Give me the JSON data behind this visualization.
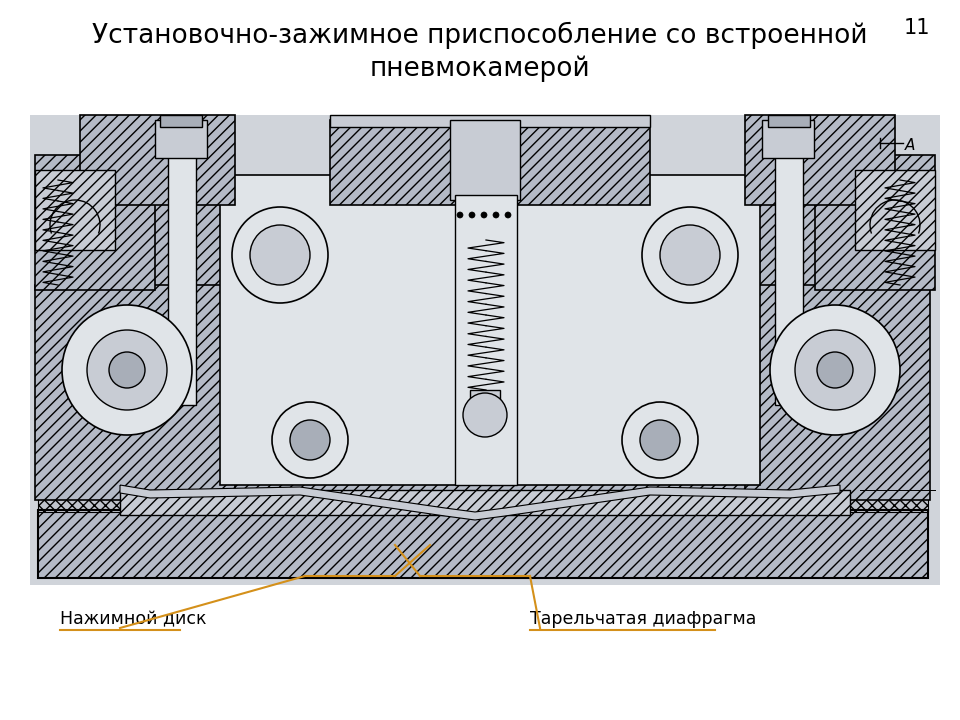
{
  "title_line1": "Установочно-зажимное приспособление со встроенной",
  "title_line2": "пневмокамерой",
  "page_number": "11",
  "title_fontsize": 19,
  "page_fontsize": 15,
  "bg_color": "#ffffff",
  "label1_text": "Нажимной диск",
  "label2_text": "Тарельчатая диафрагма",
  "arrow_color": "#d4901a",
  "label_fontsize": 12.5,
  "drawing_bg": "#d4d8de",
  "note_A": "A"
}
